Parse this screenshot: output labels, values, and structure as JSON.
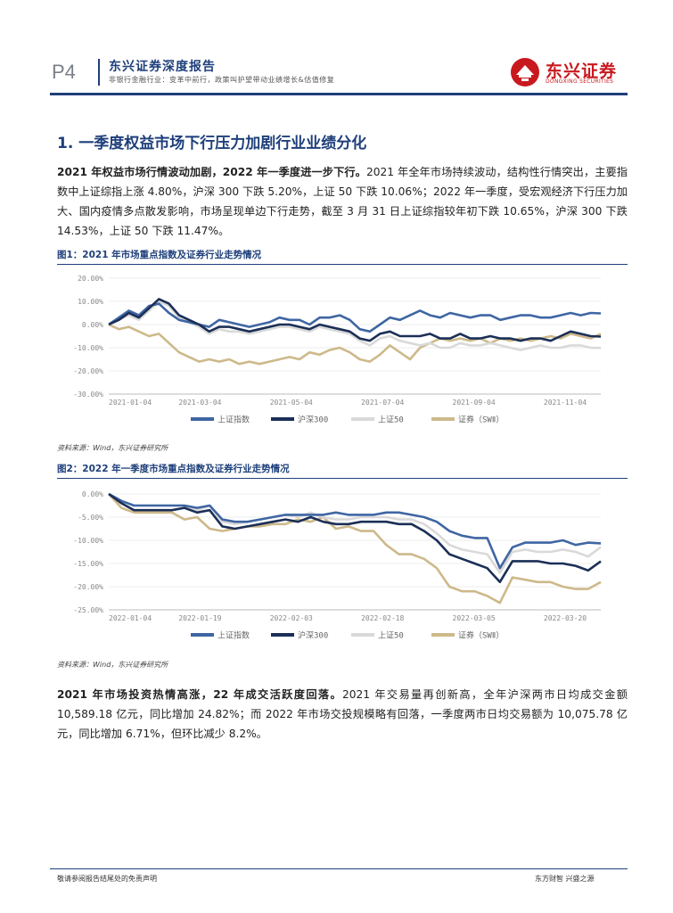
{
  "header": {
    "page_no": "P4",
    "title": "东兴证券深度报告",
    "subtitle": "非银行金融行业：变革中前行，政策叫护望带动业绩增长&估值修复",
    "logo_cn": "东兴证券",
    "logo_en": "DONGXING SECURITIES"
  },
  "section": {
    "heading": "1. 一季度权益市场下行压力加剧行业业绩分化"
  },
  "para1": {
    "bold": "2021 年权益市场行情波动加剧，2022 年一季度进一步下行。",
    "text": "2021 年全年市场持续波动，结构性行情突出，主要指数中上证综指上涨 4.80%，沪深 300 下跌 5.20%，上证 50 下跌 10.06%；2022 年一季度，受宏观经济下行压力加大、国内疫情多点散发影响，市场呈现单边下行走势，截至 3 月 31 日上证综指较年初下跌 10.65%，沪深 300 下跌 14.53%，上证 50 下跌 11.47%。"
  },
  "fig1": {
    "title": "图1：2021 年市场重点指数及证券行业走势情况",
    "source": "资料来源：Wind，东兴证券研究所"
  },
  "fig2": {
    "title": "图2：2022 年一季度市场重点指数及证券行业走势情况",
    "source": "资料来源：Wind，东兴证券研究所"
  },
  "para2": {
    "bold": "2021 年市场投资热情高涨，22 年成交活跃度回落。",
    "text": "2021 年交易量再创新高，全年沪深两市日均成交金额 10,589.18 亿元，同比增加 24.82%；而 2022 年市场交投规模略有回落，一季度两市日均交易额为 10,075.78 亿元，同比增加 6.71%，但环比减少 8.2%。"
  },
  "footer": {
    "left": "敬请参阅报告结尾处的免责声明",
    "right": "东方财智  兴盛之源"
  },
  "colors": {
    "sse": "#3f66a3",
    "csi300": "#1b2f57",
    "sse50": "#d9d9d9",
    "securities": "#cdb98a"
  },
  "chart_data": [
    {
      "type": "line",
      "title": "图1：2021 年市场重点指数及证券行业走势情况",
      "x_ticks": [
        "2021-01-04",
        "2021-03-04",
        "2021-05-04",
        "2021-07-04",
        "2021-09-04",
        "2021-11-04"
      ],
      "y_ticks": [
        "20.00%",
        "10.00%",
        "0.00%",
        "-10.00%",
        "-20.00%",
        "-30.00%"
      ],
      "ylim": [
        -30,
        20
      ],
      "n_points": 50,
      "series": [
        {
          "name": "上证指数",
          "color": "#3f66a3",
          "values": [
            0,
            3,
            6,
            4,
            8,
            9,
            5,
            2,
            1,
            0,
            -1,
            2,
            1,
            0,
            -1,
            0,
            1,
            3,
            2,
            2,
            0,
            3,
            3,
            4,
            2,
            -2,
            -3,
            0,
            3,
            2,
            4,
            6,
            4,
            3,
            5,
            4,
            3,
            4,
            4,
            2,
            3,
            4,
            4,
            3,
            3,
            4,
            5,
            4,
            5,
            4.8
          ]
        },
        {
          "name": "沪深300",
          "color": "#1b2f57",
          "values": [
            0,
            2,
            5,
            3,
            7,
            11,
            9,
            4,
            2,
            0,
            -3,
            -1,
            -1,
            -2,
            -3,
            -2,
            -1,
            0,
            0,
            -1,
            -2,
            0,
            -1,
            -2,
            -3,
            -6,
            -7,
            -4,
            -3,
            -5,
            -5,
            -5,
            -4,
            -6,
            -6,
            -4,
            -6,
            -6,
            -5,
            -6,
            -6,
            -7,
            -6,
            -6,
            -7,
            -5,
            -3,
            -4,
            -5,
            -5.2
          ]
        },
        {
          "name": "上证50",
          "color": "#d9d9d9",
          "values": [
            0,
            2,
            4,
            2,
            6,
            10,
            8,
            3,
            1,
            -1,
            -4,
            -2,
            -3,
            -3,
            -4,
            -3,
            -2,
            -1,
            -1,
            -2,
            -3,
            -1,
            -2,
            -3,
            -4,
            -7,
            -9,
            -6,
            -5,
            -7,
            -8,
            -9,
            -8,
            -10,
            -10,
            -8,
            -9,
            -9,
            -8,
            -9,
            -10,
            -11,
            -10,
            -9,
            -10,
            -10,
            -9,
            -9,
            -10,
            -10.06
          ]
        },
        {
          "name": "证券（SWⅡ）",
          "color": "#cdb98a",
          "values": [
            0,
            -2,
            -1,
            -3,
            -5,
            -4,
            -8,
            -12,
            -14,
            -16,
            -15,
            -16,
            -15,
            -17,
            -16,
            -17,
            -16,
            -15,
            -14,
            -15,
            -12,
            -13,
            -11,
            -10,
            -12,
            -15,
            -16,
            -13,
            -9,
            -12,
            -15,
            -10,
            -8,
            -6,
            -7,
            -6,
            -7,
            -6,
            -8,
            -6,
            -7,
            -6,
            -7,
            -6,
            -5,
            -6,
            -4,
            -5,
            -6,
            -4
          ]
        }
      ]
    },
    {
      "type": "line",
      "title": "图2：2022 年一季度市场重点指数及证券行业走势情况",
      "x_ticks": [
        "2022-01-04",
        "2022-01-19",
        "2022-02-03",
        "2022-02-18",
        "2022-03-05",
        "2022-03-20"
      ],
      "y_ticks": [
        "0.00%",
        "-5.00%",
        "-10.00%",
        "-15.00%",
        "-20.00%",
        "-25.00%"
      ],
      "ylim": [
        -25,
        0
      ],
      "n_points": 40,
      "series": [
        {
          "name": "上证指数",
          "color": "#3f66a3",
          "values": [
            0,
            -1.5,
            -2.5,
            -2.5,
            -2.5,
            -2.5,
            -2.5,
            -3,
            -2.5,
            -5.5,
            -6,
            -6,
            -5.5,
            -5,
            -4.5,
            -4.5,
            -4.5,
            -4.5,
            -4,
            -4.5,
            -4.5,
            -4.5,
            -4,
            -4,
            -4.5,
            -5,
            -6,
            -8,
            -9,
            -9.5,
            -9.5,
            -16,
            -11.5,
            -10.5,
            -10.5,
            -10.5,
            -10,
            -11,
            -10.5,
            -10.65
          ]
        },
        {
          "name": "沪深300",
          "color": "#1b2f57",
          "values": [
            0,
            -2,
            -3.5,
            -3.5,
            -3.5,
            -3.5,
            -3,
            -4,
            -3.5,
            -7,
            -7.5,
            -7,
            -6.5,
            -6,
            -5.5,
            -6,
            -5,
            -6,
            -6.5,
            -6.5,
            -6,
            -6,
            -6,
            -6.5,
            -6.5,
            -8,
            -10,
            -13,
            -14,
            -15,
            -16,
            -19,
            -14.5,
            -14.5,
            -14.5,
            -15,
            -15,
            -15.5,
            -16.5,
            -14.53
          ]
        },
        {
          "name": "上证50",
          "color": "#d9d9d9",
          "values": [
            0,
            -1.5,
            -2.5,
            -2.5,
            -2.5,
            -2.5,
            -2.5,
            -3.5,
            -2.5,
            -6,
            -6.5,
            -6,
            -5.5,
            -5,
            -4.5,
            -5,
            -4,
            -5,
            -5.5,
            -5.5,
            -5,
            -5,
            -5,
            -5.5,
            -5.5,
            -6.5,
            -8.5,
            -11,
            -12,
            -12.5,
            -13,
            -17,
            -12.5,
            -12,
            -12.5,
            -12.5,
            -12,
            -12.5,
            -13.5,
            -11.47
          ]
        },
        {
          "name": "证券（SWⅡ）",
          "color": "#cdb98a",
          "values": [
            0,
            -3,
            -4,
            -4,
            -4,
            -4,
            -5.5,
            -5,
            -7.5,
            -8,
            -7.5,
            -7,
            -7,
            -6.5,
            -6.5,
            -5.5,
            -6,
            -5,
            -7.5,
            -7,
            -8,
            -8,
            -11,
            -13,
            -13,
            -14,
            -16,
            -20,
            -21,
            -21,
            -22,
            -23.5,
            -18,
            -18.5,
            -19,
            -19,
            -20,
            -20.5,
            -20.5,
            -19
          ]
        }
      ]
    }
  ]
}
